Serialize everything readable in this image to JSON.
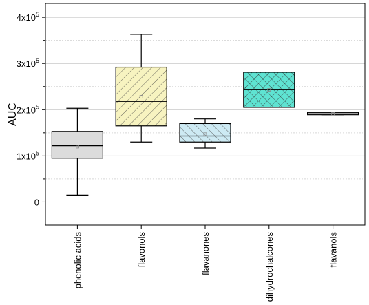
{
  "chart_data": {
    "type": "box",
    "ylabel": "AUC",
    "ylim": [
      -50000,
      430000
    ],
    "yticks": [
      {
        "value": 0,
        "label": "0",
        "sup": ""
      },
      {
        "value": 100000,
        "label": "1x10",
        "sup": "5"
      },
      {
        "value": 200000,
        "label": "2x10",
        "sup": "5"
      },
      {
        "value": 300000,
        "label": "3x10",
        "sup": "5"
      },
      {
        "value": 400000,
        "label": "4x10",
        "sup": "5"
      }
    ],
    "minor_gridlines": [
      50000,
      150000,
      250000,
      350000
    ],
    "grid": true,
    "categories": [
      "phenolic acids",
      "flavonols",
      "flavanones",
      "dihydrochalcones",
      "flavanols"
    ],
    "boxes": [
      {
        "name": "phenolic acids",
        "whisker_low": 15000,
        "q1": 95000,
        "median": 122000,
        "mean": 120000,
        "q3": 153000,
        "whisker_high": 203000,
        "fill": "#dcdcdc",
        "pattern": "none"
      },
      {
        "name": "flavonols",
        "whisker_low": 130000,
        "q1": 165000,
        "median": 218000,
        "mean": 228000,
        "q3": 292000,
        "whisker_high": 363000,
        "fill": "#f7f3c0",
        "pattern": "diagonal"
      },
      {
        "name": "flavanones",
        "whisker_low": 117000,
        "q1": 130000,
        "median": 143000,
        "mean": 147000,
        "q3": 170000,
        "whisker_high": 180000,
        "fill": "#cdeaf3",
        "pattern": "back-diagonal"
      },
      {
        "name": "dihydrochalcones",
        "whisker_low": 205000,
        "q1": 205000,
        "median": 244000,
        "mean": 243000,
        "q3": 281000,
        "whisker_high": 281000,
        "fill": "#5fe3d2",
        "pattern": "crosshatch"
      },
      {
        "name": "flavanols",
        "whisker_low": 189000,
        "q1": 189000,
        "median": 191000,
        "mean": 191000,
        "q3": 194000,
        "whisker_high": 194000,
        "fill": "#d3d3d3",
        "pattern": "none"
      }
    ]
  }
}
